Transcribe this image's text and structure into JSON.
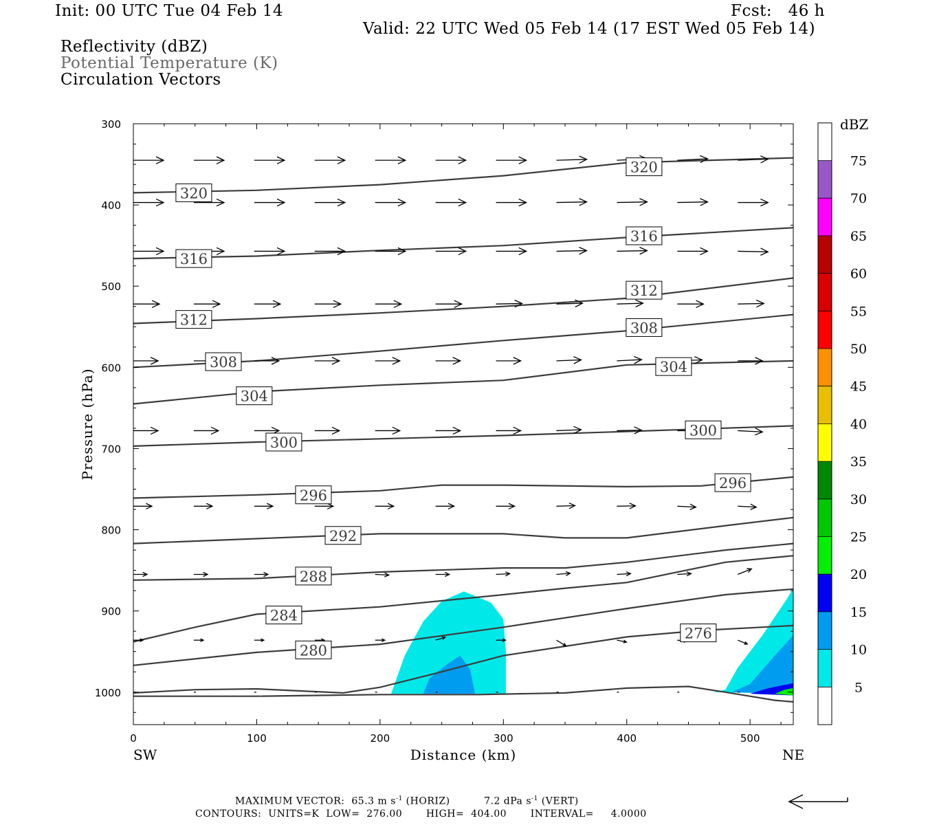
{
  "header": {
    "init": "Init: 00 UTC Tue 04 Feb 14",
    "fcst": "Fcst:   46 h",
    "valid": "Valid: 22 UTC Wed 05 Feb 14 (17 EST Wed 05 Feb 14)",
    "fields": [
      "Reflectivity (dBZ)",
      "Potential Temperature (K)",
      "Circulation Vectors"
    ]
  },
  "footer": {
    "max_vector_label": "MAXIMUM VECTOR:",
    "horiz_value": "65.3 m s",
    "horiz_tail": " (HORIZ)",
    "vert_value": "7.2 dPa s",
    "vert_tail": " (VERT)",
    "exp": "-1",
    "contours": "CONTOURS:  UNITS=K  LOW=  276.00       HIGH=  404.00       INTERVAL=     4.0000"
  },
  "chart_data": {
    "type": "cross-section",
    "xlabel": "Distance (km)",
    "ylabel": "Pressure (hPa)",
    "xlim": [
      0,
      535
    ],
    "ylim": [
      1040,
      300
    ],
    "x_ticks": [
      0,
      100,
      200,
      300,
      400,
      500
    ],
    "y_ticks": [
      300,
      400,
      500,
      600,
      700,
      800,
      900,
      1000
    ],
    "left_end_label": "SW",
    "right_end_label": "NE",
    "colorbar": {
      "unit": "dBZ",
      "levels": [
        5,
        10,
        15,
        20,
        25,
        30,
        35,
        40,
        45,
        50,
        55,
        60,
        65,
        70,
        75
      ],
      "colors": [
        "#00e8e8",
        "#009cf0",
        "#0000f4",
        "#00f000",
        "#00c800",
        "#008800",
        "#ffff00",
        "#e8c000",
        "#ff9000",
        "#ff0000",
        "#d80000",
        "#b80000",
        "#ff00ff",
        "#9858c8",
        "#ffffff"
      ]
    },
    "theta_contours": [
      {
        "label": "320",
        "points": [
          [
            0,
            385
          ],
          [
            100,
            382
          ],
          [
            200,
            375
          ],
          [
            300,
            364
          ],
          [
            400,
            348
          ],
          [
            535,
            342
          ]
        ],
        "label_at": [
          [
            49,
            385
          ],
          [
            414,
            353
          ]
        ]
      },
      {
        "label": "316",
        "points": [
          [
            0,
            466
          ],
          [
            100,
            463
          ],
          [
            200,
            456
          ],
          [
            300,
            450
          ],
          [
            400,
            440
          ],
          [
            535,
            428
          ]
        ],
        "label_at": [
          [
            49,
            466
          ],
          [
            414,
            438
          ]
        ]
      },
      {
        "label": "312",
        "points": [
          [
            0,
            546
          ],
          [
            100,
            540
          ],
          [
            200,
            533
          ],
          [
            300,
            525
          ],
          [
            400,
            515
          ],
          [
            535,
            490
          ]
        ],
        "label_at": [
          [
            49,
            541
          ],
          [
            414,
            505
          ]
        ]
      },
      {
        "label": "308",
        "points": [
          [
            0,
            600
          ],
          [
            100,
            592
          ],
          [
            200,
            580
          ],
          [
            300,
            567
          ],
          [
            400,
            555
          ],
          [
            535,
            535
          ]
        ],
        "label_at": [
          [
            73,
            593
          ],
          [
            414,
            551
          ]
        ]
      },
      {
        "label": "304",
        "points": [
          [
            0,
            645
          ],
          [
            100,
            630
          ],
          [
            200,
            622
          ],
          [
            300,
            616
          ],
          [
            400,
            597
          ],
          [
            535,
            592
          ]
        ],
        "label_at": [
          [
            98,
            635
          ],
          [
            438,
            599
          ]
        ]
      },
      {
        "label": "300",
        "points": [
          [
            0,
            697
          ],
          [
            100,
            692
          ],
          [
            200,
            688
          ],
          [
            300,
            684
          ],
          [
            400,
            679
          ],
          [
            535,
            672
          ]
        ],
        "label_at": [
          [
            122,
            692
          ],
          [
            462,
            677
          ]
        ]
      },
      {
        "label": "296",
        "points": [
          [
            0,
            761
          ],
          [
            100,
            757
          ],
          [
            200,
            752
          ],
          [
            250,
            745
          ],
          [
            300,
            745
          ],
          [
            400,
            747
          ],
          [
            460,
            746
          ],
          [
            535,
            735
          ]
        ],
        "label_at": [
          [
            146,
            757
          ],
          [
            486,
            742
          ]
        ]
      },
      {
        "label": "292",
        "points": [
          [
            0,
            817
          ],
          [
            100,
            811
          ],
          [
            200,
            805
          ],
          [
            300,
            805
          ],
          [
            350,
            810
          ],
          [
            400,
            810
          ],
          [
            480,
            795
          ],
          [
            535,
            785
          ]
        ],
        "label_at": [
          [
            170,
            807
          ]
        ]
      },
      {
        "label": "288",
        "points": [
          [
            0,
            862
          ],
          [
            100,
            860
          ],
          [
            200,
            852
          ],
          [
            300,
            847
          ],
          [
            350,
            847
          ],
          [
            400,
            840
          ],
          [
            480,
            825
          ],
          [
            535,
            817
          ]
        ],
        "label_at": [
          [
            146,
            857
          ]
        ]
      },
      {
        "label": "284",
        "points": [
          [
            0,
            938
          ],
          [
            50,
            920
          ],
          [
            100,
            904
          ],
          [
            200,
            895
          ],
          [
            300,
            880
          ],
          [
            350,
            872
          ],
          [
            400,
            865
          ],
          [
            480,
            840
          ],
          [
            535,
            832
          ]
        ],
        "label_at": [
          [
            122,
            905
          ]
        ]
      },
      {
        "label": "280",
        "points": [
          [
            0,
            967
          ],
          [
            100,
            951
          ],
          [
            200,
            941
          ],
          [
            300,
            920
          ],
          [
            400,
            897
          ],
          [
            480,
            880
          ],
          [
            535,
            873
          ]
        ],
        "label_at": [
          [
            146,
            948
          ]
        ]
      },
      {
        "label": "276",
        "points": [
          [
            0,
            1001
          ],
          [
            50,
            997
          ],
          [
            100,
            996
          ],
          [
            170,
            1001
          ],
          [
            200,
            994
          ],
          [
            250,
            975
          ],
          [
            300,
            955
          ],
          [
            400,
            932
          ],
          [
            460,
            924
          ],
          [
            535,
            918
          ]
        ],
        "label_at": [
          [
            458,
            927
          ]
        ]
      },
      {
        "label": "",
        "points": [
          [
            0,
            1005
          ],
          [
            100,
            1005
          ],
          [
            200,
            1003
          ],
          [
            280,
            1003
          ],
          [
            350,
            1001
          ],
          [
            400,
            995
          ],
          [
            450,
            993
          ],
          [
            480,
            1000
          ],
          [
            520,
            1010
          ],
          [
            535,
            1012
          ]
        ],
        "label_at": []
      }
    ],
    "reflectivity_regions": [
      {
        "dbz": 5,
        "points": [
          [
            209,
            1002
          ],
          [
            220,
            955
          ],
          [
            235,
            913
          ],
          [
            250,
            888
          ],
          [
            268,
            876
          ],
          [
            290,
            890
          ],
          [
            300,
            910
          ],
          [
            302,
            950
          ],
          [
            302,
            1002
          ]
        ]
      },
      {
        "dbz": 10,
        "points": [
          [
            235,
            1002
          ],
          [
            240,
            983
          ],
          [
            255,
            965
          ],
          [
            265,
            955
          ],
          [
            273,
            972
          ],
          [
            277,
            1002
          ]
        ]
      },
      {
        "dbz": 5,
        "points": [
          [
            470,
            1000
          ],
          [
            480,
            997
          ],
          [
            490,
            970
          ],
          [
            510,
            930
          ],
          [
            530,
            885
          ],
          [
            535,
            872
          ],
          [
            535,
            1002
          ]
        ]
      },
      {
        "dbz": 10,
        "points": [
          [
            485,
            1000
          ],
          [
            500,
            990
          ],
          [
            520,
            955
          ],
          [
            535,
            930
          ],
          [
            535,
            1002
          ]
        ]
      },
      {
        "dbz": 15,
        "points": [
          [
            500,
            1002
          ],
          [
            515,
            995
          ],
          [
            535,
            989
          ],
          [
            535,
            1004
          ]
        ]
      },
      {
        "dbz": 20,
        "points": [
          [
            520,
            1002
          ],
          [
            528,
            997
          ],
          [
            535,
            995
          ],
          [
            535,
            1004
          ]
        ]
      }
    ],
    "vector_rows": [
      {
        "p": 345,
        "x0": 0,
        "dx": 49,
        "n": 11,
        "len": 44,
        "tilt": [
          0,
          0,
          0,
          0,
          0,
          0,
          0,
          -0.03,
          -0.05,
          -0.05,
          -0.04
        ]
      },
      {
        "p": 397,
        "x0": 0,
        "dx": 49,
        "n": 11,
        "len": 44,
        "tilt": [
          0,
          0,
          0,
          0,
          0,
          0,
          0,
          -0.02,
          -0.02,
          -0.02,
          0
        ]
      },
      {
        "p": 457,
        "x0": 0,
        "dx": 49,
        "n": 11,
        "len": 44,
        "tilt": [
          0,
          0,
          0,
          0,
          0,
          0,
          0,
          -0.02,
          -0.02,
          0,
          0.02
        ]
      },
      {
        "p": 522,
        "x0": 0,
        "dx": 49,
        "n": 11,
        "len": 38,
        "tilt": [
          0,
          0,
          0,
          0,
          0,
          0,
          -0.02,
          -0.03,
          -0.03,
          0,
          -0.02
        ]
      },
      {
        "p": 592,
        "x0": 0,
        "dx": 49,
        "n": 11,
        "len": 36,
        "tilt": [
          0,
          0,
          0,
          0,
          0,
          0,
          0,
          -0.04,
          -0.05,
          -0.04,
          0
        ]
      },
      {
        "p": 678,
        "x0": 0,
        "dx": 49,
        "n": 11,
        "len": 36,
        "tilt": [
          0,
          0,
          0,
          0,
          0,
          0,
          0,
          -0.04,
          -0.02,
          0,
          0.05
        ]
      },
      {
        "p": 771,
        "x0": 0,
        "dx": 49,
        "n": 11,
        "len": 27,
        "tilt": [
          0,
          0,
          0,
          0,
          0,
          0,
          0,
          -0.03,
          -0.02,
          0.05,
          0.05
        ]
      },
      {
        "p": 855,
        "x0": 0,
        "dx": 49,
        "n": 11,
        "len": 20,
        "tilt": [
          0,
          0,
          0,
          0,
          0.05,
          0,
          -0.05,
          -0.08,
          -0.06,
          -0.06,
          -0.4
        ]
      },
      {
        "p": 936,
        "x0": 0,
        "dx": 49,
        "n": 11,
        "len": 14,
        "tilt": [
          0,
          0,
          0,
          0,
          0,
          -0.3,
          0,
          0.6,
          0.2,
          0.1,
          0.4
        ]
      },
      {
        "p": 1000,
        "x0": 0,
        "dx": 49,
        "n": 11,
        "len": 3,
        "tilt": [
          0,
          0,
          0,
          0,
          0,
          0,
          0,
          0,
          0,
          0,
          0
        ]
      }
    ]
  }
}
